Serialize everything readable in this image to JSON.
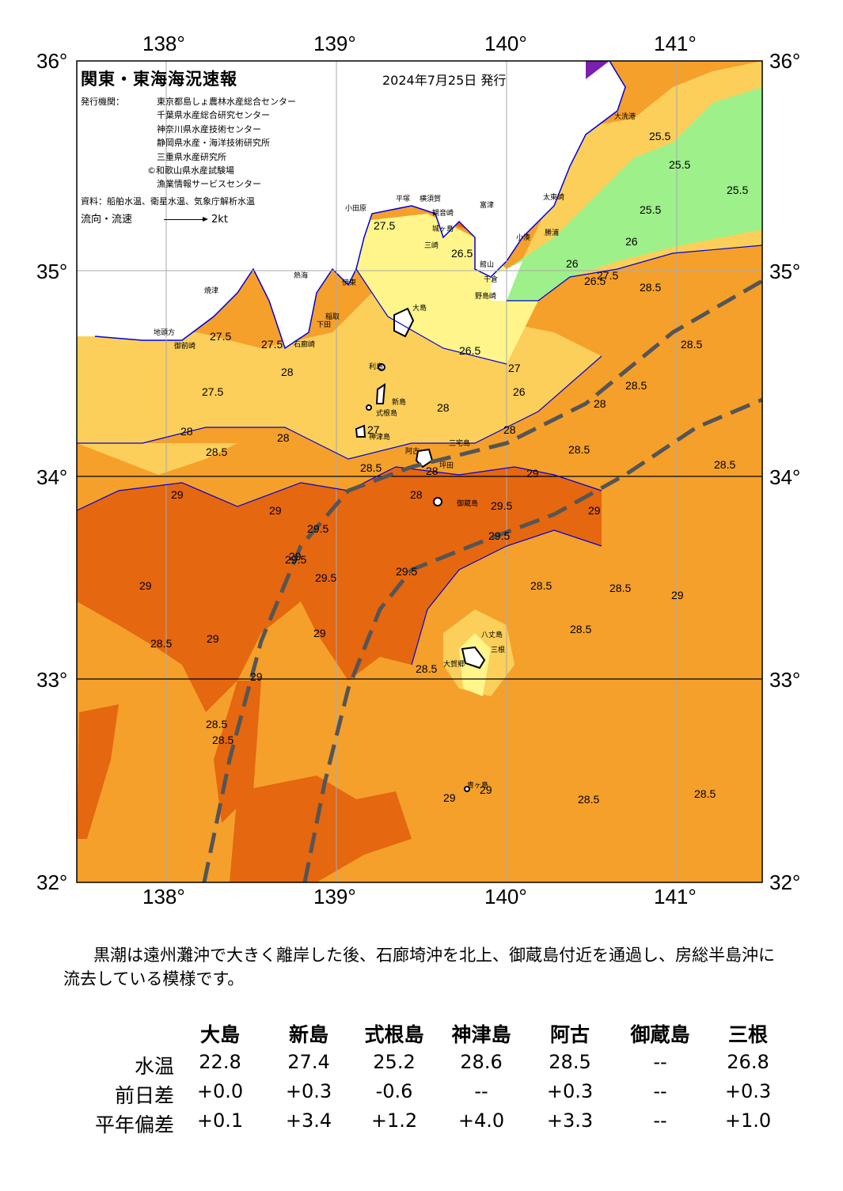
{
  "header": {
    "title": "関東・東海海況速報",
    "issue_date": "2024年7月25日 発行",
    "issuer_label": "発行機関：",
    "issuers": [
      "東京都島しょ農林水産総合センター",
      "千葉県水産総合研究センター",
      "神奈川県水産技術センター",
      "静岡県水産・海洋技術研究所",
      "三重県水産研究所",
      "©和歌山県水産試験場",
      "漁業情報サービスセンター"
    ],
    "source": "資料：船舶水温、衛星水温、気象庁解析水温",
    "flow_label": "流向・流速",
    "flow_scale": "2kt"
  },
  "axes": {
    "lon_ticks": [
      "138°",
      "139°",
      "140°",
      "141°"
    ],
    "lat_ticks": [
      "36°",
      "35°",
      "34°",
      "33°",
      "32°"
    ]
  },
  "map": {
    "place_labels": [
      "大洗港",
      "太東崎",
      "勝浦",
      "小湊",
      "館山",
      "千倉",
      "野島崎",
      "富津",
      "観音崎",
      "横須賀",
      "平塚",
      "小田原",
      "城ヶ島",
      "三崎",
      "熱海",
      "伊東",
      "稲取",
      "下田",
      "石廊崎",
      "焼津",
      "御前崎",
      "地頭方",
      "大島",
      "利島",
      "新島",
      "式根島",
      "神津島",
      "三宅島",
      "阿古",
      "坪田",
      "御蔵島",
      "八丈島",
      "三根",
      "大賀郷",
      "青ヶ島"
    ],
    "contour_labels": [
      "25.5",
      "25.5",
      "25.5",
      "25.5",
      "26",
      "26",
      "26",
      "26.5",
      "26.5",
      "26.5",
      "27",
      "27",
      "27.5",
      "27.5",
      "27.5",
      "27.5",
      "27.5",
      "28",
      "28",
      "28",
      "28",
      "28",
      "28",
      "28",
      "28",
      "28.5",
      "28.5",
      "28.5",
      "28.5",
      "28.5",
      "28.5",
      "28.5",
      "28.5",
      "28.5",
      "28.5",
      "28.5",
      "28.5",
      "28.5",
      "28.5",
      "28.5",
      "28.5",
      "29",
      "29",
      "29",
      "29",
      "29",
      "29",
      "29",
      "29",
      "29",
      "29",
      "29",
      "29",
      "29.5",
      "29.5",
      "29.5",
      "29.5",
      "29.5",
      "29.5"
    ],
    "colors": {
      "t_lt_26": "#9ef08a",
      "t_26_27": "#fff58a",
      "t_27_28": "#fbcf5a",
      "t_28_29": "#f5a02a",
      "t_ge_29": "#e5670f",
      "coast_line": "#0000dd",
      "kuroshio_axis": "#555555"
    }
  },
  "summary": "黒潮は遠州灘沖で大きく離岸した後、石廊埼沖を北上、御蔵島付近を通過し、房総半島沖に流去している模様です。",
  "table": {
    "headers": [
      "大島",
      "新島",
      "式根島",
      "神津島",
      "阿古",
      "御蔵島",
      "三根"
    ],
    "rows": [
      {
        "label": "水温",
        "values": [
          "22.8",
          "27.4",
          "25.2",
          "28.6",
          "28.5",
          "--",
          "26.8"
        ]
      },
      {
        "label": "前日差",
        "values": [
          "+0.0",
          "+0.3",
          "-0.6",
          "--",
          "+0.3",
          "--",
          "+0.3"
        ]
      },
      {
        "label": "平年偏差",
        "values": [
          "+0.1",
          "+3.4",
          "+1.2",
          "+4.0",
          "+3.3",
          "--",
          "+1.0"
        ]
      }
    ]
  }
}
